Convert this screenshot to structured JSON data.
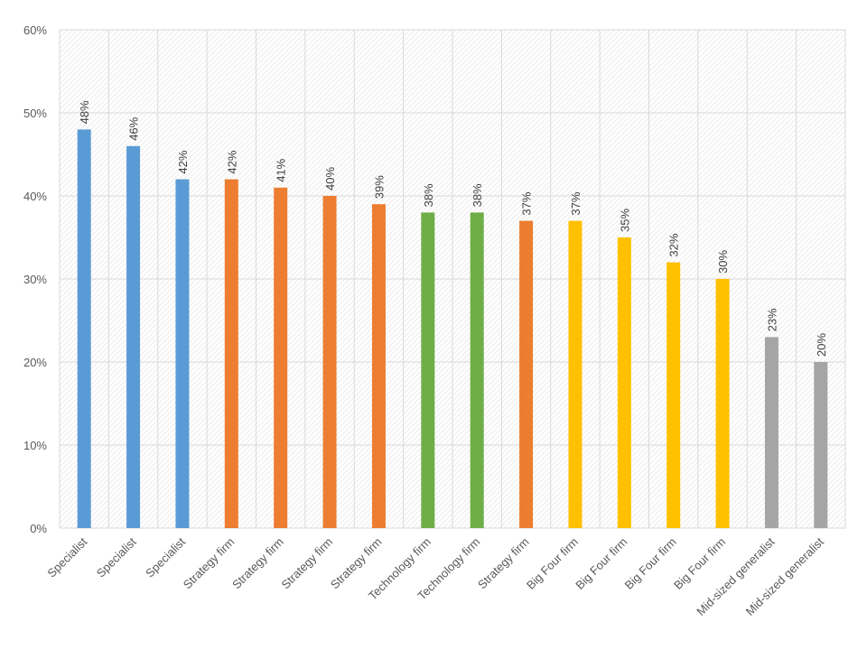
{
  "chart_data": {
    "type": "bar",
    "title": "",
    "xlabel": "",
    "ylabel": "",
    "ylim": [
      0,
      60
    ],
    "yticks": [
      0,
      10,
      20,
      30,
      40,
      50,
      60
    ],
    "ytick_labels": [
      "0%",
      "10%",
      "20%",
      "30%",
      "40%",
      "50%",
      "60%"
    ],
    "grid": true,
    "categories": [
      "Specialist",
      "Specialist",
      "Specialist",
      "Strategy firm",
      "Strategy firm",
      "Strategy firm",
      "Strategy firm",
      "Technology firm",
      "Technology firm",
      "Strategy firm",
      "Big Four firm",
      "Big Four firm",
      "Big Four firm",
      "Big Four firm",
      "Mid-sized generalist",
      "Mid-sized generalist"
    ],
    "values": [
      48,
      46,
      42,
      42,
      41,
      40,
      39,
      38,
      38,
      37,
      37,
      35,
      32,
      30,
      23,
      20
    ],
    "data_labels": [
      "48%",
      "46%",
      "42%",
      "42%",
      "41%",
      "40%",
      "39%",
      "38%",
      "38%",
      "37%",
      "37%",
      "35%",
      "32%",
      "30%",
      "23%",
      "20%"
    ],
    "colors": [
      "#5B9BD5",
      "#5B9BD5",
      "#5B9BD5",
      "#ED7D31",
      "#ED7D31",
      "#ED7D31",
      "#ED7D31",
      "#70AD47",
      "#70AD47",
      "#ED7D31",
      "#FFC000",
      "#FFC000",
      "#FFC000",
      "#FFC000",
      "#A5A5A5",
      "#A5A5A5"
    ]
  }
}
